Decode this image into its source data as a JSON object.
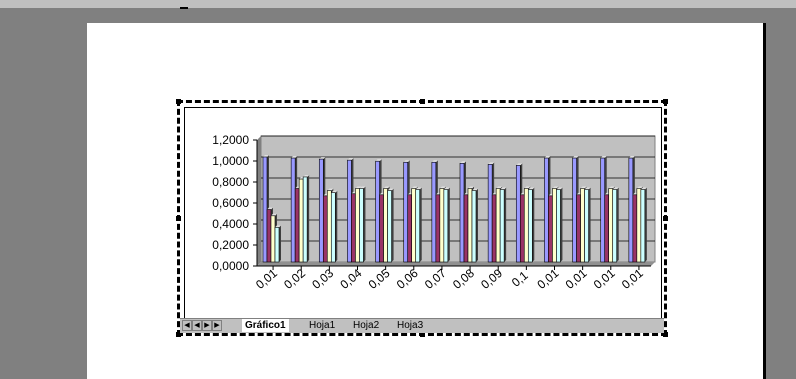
{
  "sheet_tabs": [
    "Gráfico1",
    "Hoja1",
    "Hoja2",
    "Hoja3"
  ],
  "nav_icons": [
    "first-sheet-icon",
    "prev-sheet-icon",
    "next-sheet-icon",
    "last-sheet-icon"
  ],
  "chart_data": {
    "type": "bar",
    "categories": [
      "0,01",
      "0,02",
      "0,03",
      "0,04",
      "0,05",
      "0,06",
      "0,07",
      "0,08",
      "0,09",
      "0,1",
      "0,01",
      "0,01",
      "0,01",
      "0,01"
    ],
    "yticks": [
      "0,0000",
      "0,2000",
      "0,4000",
      "0,6000",
      "0,8000",
      "1,0000",
      "1,2000"
    ],
    "ylim": [
      0,
      1.2
    ],
    "grid": true,
    "plot_background": "#c0c0c0",
    "series": [
      {
        "color": "#9999ff",
        "values": [
          1.0,
          0.99,
          0.98,
          0.97,
          0.96,
          0.95,
          0.95,
          0.94,
          0.93,
          0.92,
          0.99,
          0.99,
          0.99,
          0.99
        ]
      },
      {
        "color": "#993366",
        "values": [
          0.5,
          0.7,
          0.63,
          0.65,
          0.64,
          0.64,
          0.64,
          0.64,
          0.64,
          0.64,
          0.63,
          0.64,
          0.64,
          0.64
        ]
      },
      {
        "color": "#ffffcc",
        "values": [
          0.44,
          0.79,
          0.68,
          0.7,
          0.7,
          0.7,
          0.7,
          0.7,
          0.7,
          0.7,
          0.7,
          0.7,
          0.7,
          0.7
        ]
      },
      {
        "color": "#ccffff",
        "values": [
          0.33,
          0.81,
          0.66,
          0.7,
          0.68,
          0.69,
          0.69,
          0.68,
          0.69,
          0.69,
          0.69,
          0.69,
          0.69,
          0.69
        ]
      }
    ]
  }
}
